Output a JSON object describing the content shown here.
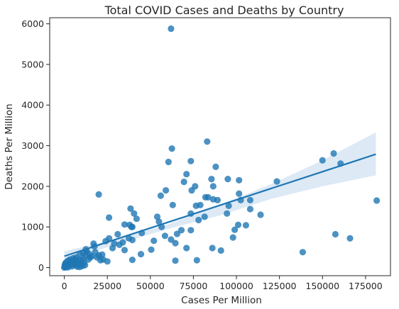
{
  "chart_data": {
    "type": "scatter",
    "title": "Total COVID Cases and Deaths by Country",
    "xlabel": "Cases Per Million",
    "ylabel": "Deaths Per Million",
    "xlim": [
      -8500,
      189500
    ],
    "ylim": [
      -200,
      6150
    ],
    "x_ticks": [
      0,
      25000,
      50000,
      75000,
      100000,
      125000,
      150000,
      175000
    ],
    "x_tick_labels": [
      "0",
      "25000",
      "50000",
      "75000",
      "100000",
      "125000",
      "150000",
      "175000"
    ],
    "y_ticks": [
      0,
      1000,
      2000,
      3000,
      4000,
      5000,
      6000
    ],
    "y_tick_labels": [
      "0",
      "1000",
      "2000",
      "3000",
      "4000",
      "5000",
      "6000"
    ],
    "grid": false,
    "marker_color": "#1f77b4",
    "ci_color": "#c6dbef",
    "regression": {
      "start": [
        0,
        280
      ],
      "end": [
        181000,
        2790
      ],
      "ci_upper": [
        [
          0,
          400
        ],
        [
          30000,
          700
        ],
        [
          60000,
          1060
        ],
        [
          90000,
          1540
        ],
        [
          120000,
          2050
        ],
        [
          150000,
          2640
        ],
        [
          181000,
          3330
        ]
      ],
      "ci_lower": [
        [
          0,
          160
        ],
        [
          30000,
          570
        ],
        [
          60000,
          950
        ],
        [
          90000,
          1280
        ],
        [
          120000,
          1690
        ],
        [
          150000,
          2000
        ],
        [
          181000,
          2270
        ]
      ]
    },
    "points": [
      [
        62000,
        5880
      ],
      [
        83000,
        3100
      ],
      [
        62500,
        2930
      ],
      [
        73500,
        2620
      ],
      [
        60500,
        2600
      ],
      [
        88000,
        2480
      ],
      [
        71000,
        2300
      ],
      [
        85500,
        2180
      ],
      [
        95000,
        2180
      ],
      [
        101500,
        2150
      ],
      [
        123500,
        2120
      ],
      [
        69500,
        2110
      ],
      [
        76000,
        2000
      ],
      [
        74000,
        1900
      ],
      [
        59000,
        1900
      ],
      [
        86500,
        2000
      ],
      [
        20000,
        1800
      ],
      [
        56000,
        1770
      ],
      [
        101500,
        1820
      ],
      [
        82000,
        1730
      ],
      [
        83500,
        1730
      ],
      [
        63000,
        1540
      ],
      [
        79000,
        1540
      ],
      [
        76500,
        1520
      ],
      [
        86500,
        1680
      ],
      [
        108000,
        1660
      ],
      [
        89000,
        1660
      ],
      [
        102500,
        1660
      ],
      [
        38500,
        1450
      ],
      [
        95500,
        1520
      ],
      [
        40500,
        1330
      ],
      [
        108000,
        1440
      ],
      [
        73500,
        1330
      ],
      [
        81500,
        1250
      ],
      [
        78000,
        1170
      ],
      [
        94500,
        1330
      ],
      [
        54000,
        1250
      ],
      [
        26000,
        1230
      ],
      [
        114000,
        1300
      ],
      [
        42000,
        1200
      ],
      [
        55000,
        1130
      ],
      [
        39000,
        1000
      ],
      [
        35000,
        1060
      ],
      [
        38000,
        1050
      ],
      [
        39500,
        1000
      ],
      [
        56500,
        1000
      ],
      [
        68000,
        920
      ],
      [
        73500,
        920
      ],
      [
        99000,
        930
      ],
      [
        105500,
        1040
      ],
      [
        101000,
        1050
      ],
      [
        58500,
        780
      ],
      [
        31000,
        820
      ],
      [
        45000,
        850
      ],
      [
        65500,
        830
      ],
      [
        37500,
        720
      ],
      [
        39500,
        680
      ],
      [
        26000,
        720
      ],
      [
        24000,
        650
      ],
      [
        34000,
        620
      ],
      [
        29000,
        590
      ],
      [
        32000,
        560
      ],
      [
        17000,
        590
      ],
      [
        17500,
        520
      ],
      [
        12500,
        450
      ],
      [
        13000,
        400
      ],
      [
        11000,
        350
      ],
      [
        9000,
        330
      ],
      [
        18000,
        380
      ],
      [
        22000,
        320
      ],
      [
        35000,
        430
      ],
      [
        28000,
        480
      ],
      [
        50500,
        440
      ],
      [
        71000,
        480
      ],
      [
        86000,
        480
      ],
      [
        91000,
        420
      ],
      [
        62000,
        690
      ],
      [
        52000,
        660
      ],
      [
        98000,
        740
      ],
      [
        44500,
        330
      ],
      [
        64500,
        600
      ],
      [
        20000,
        300
      ],
      [
        15000,
        250
      ],
      [
        14000,
        200
      ],
      [
        21000,
        180
      ],
      [
        25000,
        150
      ],
      [
        39500,
        190
      ],
      [
        64500,
        170
      ],
      [
        77000,
        180
      ],
      [
        138500,
        380
      ],
      [
        157500,
        820
      ],
      [
        166000,
        720
      ],
      [
        181500,
        1650
      ],
      [
        150000,
        2640
      ],
      [
        156500,
        2810
      ],
      [
        160500,
        2560
      ],
      [
        10000,
        180
      ],
      [
        6000,
        200
      ],
      [
        5000,
        150
      ],
      [
        3000,
        170
      ],
      [
        2000,
        130
      ],
      [
        1000,
        100
      ],
      [
        500,
        50
      ],
      [
        200,
        20
      ],
      [
        1500,
        40
      ],
      [
        2500,
        80
      ],
      [
        3500,
        60
      ],
      [
        4000,
        120
      ],
      [
        5500,
        90
      ],
      [
        6500,
        60
      ],
      [
        7000,
        140
      ],
      [
        8000,
        110
      ],
      [
        9500,
        80
      ],
      [
        10500,
        40
      ],
      [
        11500,
        120
      ],
      [
        12000,
        60
      ],
      [
        1000,
        10
      ],
      [
        2200,
        5
      ],
      [
        4500,
        30
      ],
      [
        7500,
        25
      ],
      [
        9000,
        15
      ],
      [
        0,
        0
      ],
      [
        300,
        70
      ],
      [
        800,
        120
      ],
      [
        1800,
        160
      ],
      [
        3200,
        200
      ],
      [
        5200,
        230
      ],
      [
        6800,
        250
      ],
      [
        8500,
        190
      ],
      [
        11000,
        220
      ],
      [
        12500,
        300
      ],
      [
        14500,
        330
      ],
      [
        16000,
        280
      ],
      [
        19000,
        250
      ],
      [
        22500,
        200
      ]
    ]
  }
}
